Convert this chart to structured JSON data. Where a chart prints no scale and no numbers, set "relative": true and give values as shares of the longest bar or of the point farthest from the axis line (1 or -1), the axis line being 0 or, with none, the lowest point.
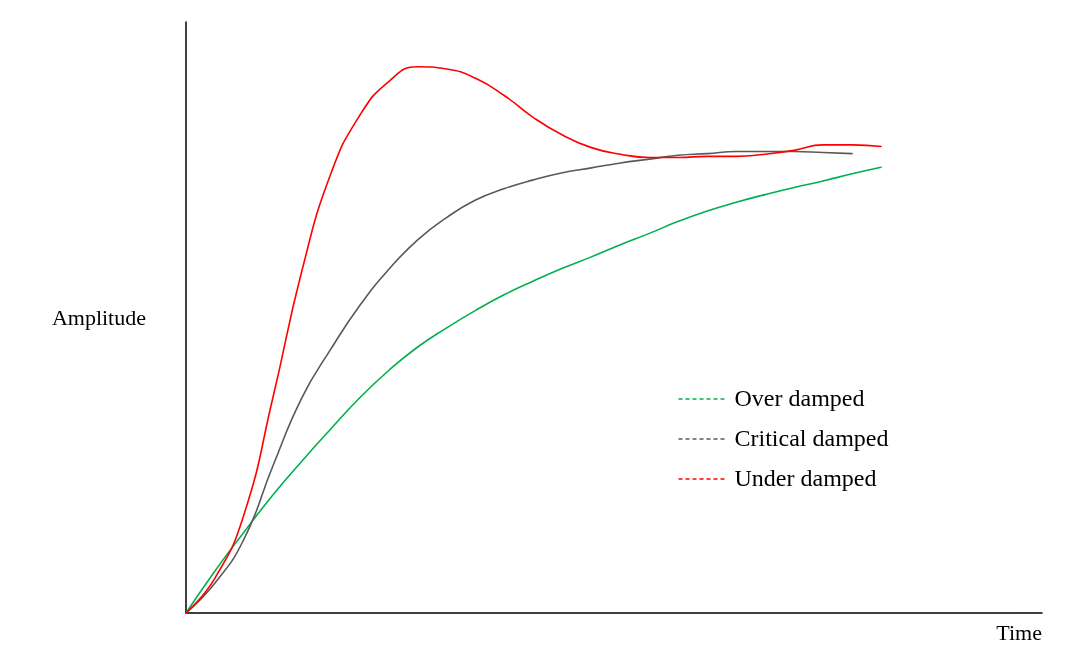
{
  "chart_data": {
    "type": "line",
    "relative": true,
    "xlabel": "Time",
    "ylabel": "Amplitude",
    "categories": [
      null,
      null,
      null,
      null,
      null,
      null,
      null,
      null,
      null,
      null,
      null,
      null,
      null,
      null,
      null,
      null,
      null,
      null,
      null,
      null,
      null,
      null,
      null,
      null,
      null
    ],
    "series": [
      {
        "name": "Over damped",
        "color": "#00b050",
        "values": [
          0,
          0.077,
          0.148,
          0.216,
          0.278,
          0.337,
          0.394,
          0.444,
          0.487,
          0.522,
          0.554,
          0.583,
          0.608,
          0.631,
          0.652,
          0.674,
          0.695,
          0.717,
          0.736,
          0.752,
          0.766,
          0.779,
          0.791,
          0.804,
          0.816
        ]
      },
      {
        "name": "Critical damped",
        "color": "#595959",
        "values": [
          0,
          0.055,
          0.135,
          0.269,
          0.394,
          0.483,
          0.563,
          0.629,
          0.683,
          0.724,
          0.756,
          0.777,
          0.793,
          0.806,
          0.815,
          0.824,
          0.831,
          0.838,
          0.841,
          0.845,
          0.845,
          0.845,
          0.843,
          0.841,
          null
        ]
      },
      {
        "name": "Under damped",
        "color": "#ff0000",
        "values": [
          0,
          0.064,
          0.18,
          0.394,
          0.626,
          0.804,
          0.911,
          0.973,
          1,
          0.996,
          0.979,
          0.947,
          0.907,
          0.875,
          0.852,
          0.84,
          0.834,
          0.834,
          0.836,
          0.836,
          0.84,
          0.847,
          0.857,
          0.857,
          0.854
        ]
      }
    ],
    "legend": "right",
    "marker": "none",
    "line_style": "solid",
    "grid": false
  }
}
